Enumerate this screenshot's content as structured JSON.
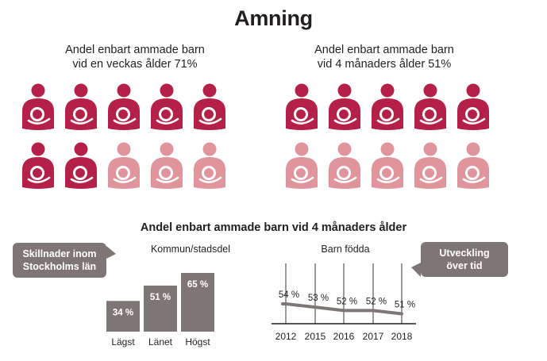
{
  "title": "Amning",
  "panels": [
    {
      "caption_line1": "Andel enbart ammade barn",
      "caption_line2": "vid en veckas ålder 71%",
      "filled": 7,
      "total": 10
    },
    {
      "caption_line1": "Andel enbart ammade barn",
      "caption_line2": "vid 4 månaders ålder 51%",
      "filled": 5,
      "total": 10
    }
  ],
  "section_heading": "Andel enbart ammade barn vid 4 månaders ålder",
  "callout_left": {
    "line1": "Skillnader inom",
    "line2": "Stockholms län"
  },
  "callout_right": {
    "line1": "Utveckling",
    "line2": "över tid"
  },
  "colors": {
    "filled": "#b52048",
    "light": "#e0959c",
    "bar": "#7e7675",
    "line": "#7e7675",
    "axis": "#231f20"
  },
  "icon": "breastfeeding-mother-icon",
  "chart_data": [
    {
      "type": "bar",
      "title": "Kommun/stadsdel",
      "categories": [
        "Lägst",
        "Länet",
        "Högst"
      ],
      "values": [
        34,
        51,
        65
      ],
      "value_labels": [
        "34 %",
        "51 %",
        "65 %"
      ],
      "ylim": [
        0,
        65
      ]
    },
    {
      "type": "line",
      "title": "Barn födda",
      "x": [
        "2012",
        "2015",
        "2016",
        "2017",
        "2018"
      ],
      "values": [
        54,
        53,
        52,
        52,
        51
      ],
      "value_labels": [
        "54 %",
        "53 %",
        "52 %",
        "52 %",
        "51 %"
      ],
      "grid": true
    }
  ]
}
